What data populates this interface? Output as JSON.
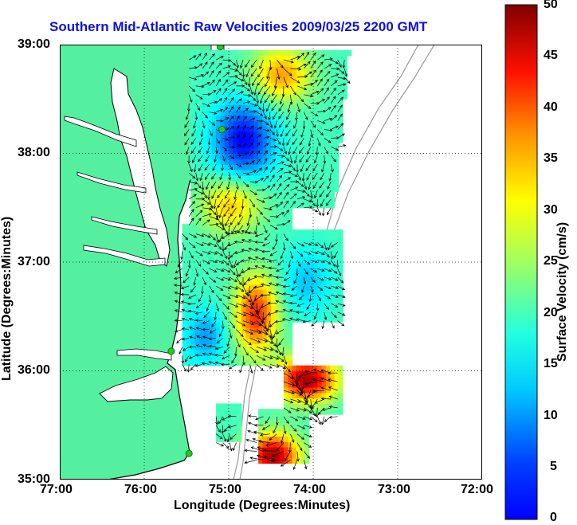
{
  "title": "Southern Mid-Atlantic Raw Velocities 2009/03/25 2200 GMT",
  "axes": {
    "xlabel": "Longitude (Degrees:Minutes)",
    "ylabel": "Latitude (Degrees:Minutes)",
    "x_ticks": [
      "77:00",
      "76:00",
      "75:00",
      "74:00",
      "73:00",
      "72:00"
    ],
    "y_ticks": [
      "39:00",
      "38:00",
      "37:00",
      "36:00",
      "35:00"
    ],
    "x_range": [
      -77,
      -72
    ],
    "y_range": [
      35,
      39
    ],
    "grid": "dotted"
  },
  "colorbar": {
    "label": "Surface Velocity (cm/s)",
    "ticks": [
      "0",
      "5",
      "10",
      "15",
      "20",
      "25",
      "30",
      "35",
      "40",
      "45",
      "50"
    ],
    "range": [
      0,
      50
    ],
    "colormap": "jet"
  },
  "colors": {
    "land": "#54f0a0",
    "title": "#1010e0",
    "coast": "#000000",
    "bathymetry": "#999999",
    "station": "#22cc22",
    "vector": "#000000"
  },
  "stations": [
    {
      "lon": -75.1,
      "lat": 38.98
    },
    {
      "lon": -75.08,
      "lat": 38.22
    },
    {
      "lon": -75.68,
      "lat": 36.18
    },
    {
      "lon": -75.47,
      "lat": 35.24
    }
  ]
}
